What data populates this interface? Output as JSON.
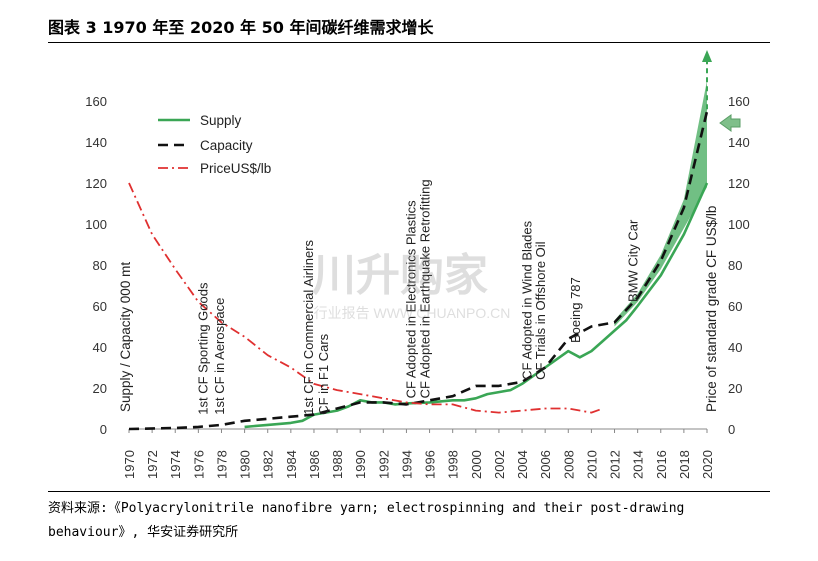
{
  "header": {
    "title": "图表 3 1970 年至 2020 年 50 年间碳纤维需求增长"
  },
  "footer": {
    "source_line1": "资料来源:《Polyacrylonitrile nanofibre yarn; electrospinning and their post-drawing",
    "source_line2": "behaviour》, 华安证券研究所"
  },
  "watermark": {
    "main": "川升购家",
    "sub": "行业报告 WWW.CHUANPO.CN"
  },
  "chart_data": {
    "type": "line",
    "ylabel": "Supply / Capacity 000 mt",
    "y2label": "Price of standard grade CF US$/lb",
    "ylim": [
      0,
      165
    ],
    "y2lim": [
      0,
      165
    ],
    "yticks": [
      0,
      20,
      40,
      60,
      80,
      100,
      120,
      140,
      160
    ],
    "x_tick_labels": [
      "1970",
      "1972",
      "1974",
      "1976",
      "1978",
      "1980",
      "1982",
      "1984",
      "1986",
      "1988",
      "1990",
      "1992",
      "1994",
      "1996",
      "1998",
      "2000",
      "2002",
      "2004",
      "2006",
      "2008",
      "2010",
      "2012",
      "2014",
      "2016",
      "2018",
      "2020"
    ],
    "legend_position": "top-left",
    "series": [
      {
        "name": "Supply",
        "color": "#3aa655",
        "style": "solid",
        "x": [
          1980,
          1982,
          1984,
          1985,
          1986,
          1988,
          1989,
          1990,
          1991,
          1992,
          1993,
          1994,
          1996,
          1998,
          1999,
          2000,
          2001,
          2002,
          2003,
          2004,
          2005,
          2006,
          2007,
          2008,
          2009,
          2010,
          2011,
          2012,
          2013,
          2014,
          2016,
          2018,
          2020
        ],
        "y": [
          1,
          2,
          3,
          4,
          7,
          9,
          11,
          14,
          13,
          13,
          12,
          12.5,
          13,
          14,
          14,
          15,
          17,
          18,
          19,
          22,
          26,
          30,
          34,
          38,
          35,
          38,
          43,
          48,
          53,
          60,
          75,
          95,
          120
        ]
      },
      {
        "name": "Capacity",
        "color": "#111111",
        "style": "dashed",
        "x": [
          1970,
          1974,
          1976,
          1978,
          1980,
          1982,
          1984,
          1986,
          1988,
          1990,
          1992,
          1994,
          1996,
          1998,
          2000,
          2002,
          2004,
          2006,
          2008,
          2010,
          2012,
          2014,
          2016,
          2018,
          2020
        ],
        "y": [
          0,
          0.5,
          1,
          2,
          4,
          5,
          6,
          7,
          10,
          13,
          13,
          12,
          14,
          16,
          21,
          21,
          23,
          30,
          44,
          50,
          52,
          64,
          82,
          108,
          155
        ]
      },
      {
        "name": "PriceUS$/lb",
        "color": "#e03030",
        "style": "dashdot",
        "axis": "right",
        "x": [
          1970,
          1972,
          1974,
          1976,
          1978,
          1980,
          1982,
          1984,
          1986,
          1988,
          1990,
          1992,
          1994,
          1996,
          1998,
          2000,
          2002,
          2004,
          2006,
          2008,
          2010,
          2011
        ],
        "y": [
          120,
          95,
          78,
          62,
          52,
          45,
          36,
          30,
          22,
          19,
          17,
          15,
          13,
          12,
          12,
          9,
          8,
          9,
          10,
          10,
          8,
          10
        ]
      }
    ],
    "forecast_band": {
      "color": "#3aa655",
      "x": [
        2012,
        2014,
        2016,
        2018,
        2020
      ],
      "low": [
        50,
        62,
        78,
        98,
        118
      ],
      "high": [
        53,
        66,
        85,
        112,
        170
      ]
    },
    "annotations": [
      {
        "text": "1st CF Sporting Goods",
        "x": 1976.8,
        "y": 5
      },
      {
        "text": "1st CF in Aerospace",
        "x": 1978.2,
        "y": 5
      },
      {
        "text": "1st CF in Commercial Airliners",
        "x": 1985.9,
        "y": 5
      },
      {
        "text": "CF in F1 Cars",
        "x": 1987.2,
        "y": 5
      },
      {
        "text": "CF Adopted in Electronics Plastics",
        "x": 1994.8,
        "y": 13
      },
      {
        "text": "CF Adopted in Earthquake Retrofitting",
        "x": 1996.0,
        "y": 13
      },
      {
        "text": "CF Adopted in Wind Blades",
        "x": 2004.8,
        "y": 22
      },
      {
        "text": "CF Trials in Offshore Oil",
        "x": 2006.0,
        "y": 22
      },
      {
        "text": "Boeing 787",
        "x": 2009.0,
        "y": 40
      },
      {
        "text": "BMW City Car",
        "x": 2014.0,
        "y": 60
      }
    ]
  }
}
